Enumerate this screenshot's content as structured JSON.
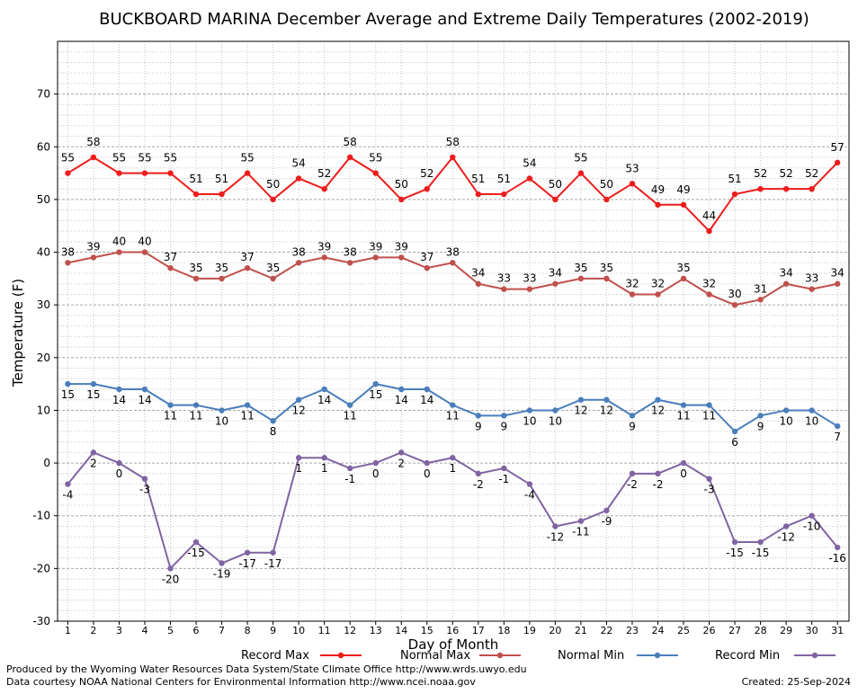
{
  "chart_data": {
    "type": "line",
    "title": "BUCKBOARD MARINA December Average and Extreme Daily Temperatures (2002-2019)",
    "xlabel": "Day of Month",
    "ylabel": "Temperature (F)",
    "x": [
      1,
      2,
      3,
      4,
      5,
      6,
      7,
      8,
      9,
      10,
      11,
      12,
      13,
      14,
      15,
      16,
      17,
      18,
      19,
      20,
      21,
      22,
      23,
      24,
      25,
      26,
      27,
      28,
      29,
      30,
      31
    ],
    "ylim": [
      -30,
      80
    ],
    "yticks": [
      -30,
      -20,
      -10,
      0,
      10,
      20,
      30,
      40,
      50,
      60,
      70
    ],
    "grid": true,
    "legend_position": "bottom",
    "series": [
      {
        "name": "Record Max",
        "color": "#ee1c1c",
        "values": [
          55,
          58,
          55,
          55,
          55,
          51,
          51,
          55,
          50,
          54,
          52,
          58,
          55,
          50,
          52,
          58,
          51,
          51,
          54,
          50,
          55,
          50,
          53,
          49,
          49,
          44,
          51,
          52,
          52,
          52,
          57
        ]
      },
      {
        "name": "Normal Max",
        "color": "#c0504d",
        "values": [
          38,
          39,
          40,
          40,
          37,
          35,
          35,
          37,
          35,
          38,
          39,
          38,
          39,
          39,
          37,
          38,
          34,
          33,
          33,
          34,
          35,
          35,
          32,
          32,
          35,
          32,
          30,
          31,
          34,
          33,
          34
        ]
      },
      {
        "name": "Normal Min",
        "color": "#4a7ebb",
        "values": [
          15,
          15,
          14,
          14,
          11,
          11,
          10,
          11,
          8,
          12,
          14,
          11,
          15,
          14,
          14,
          11,
          9,
          9,
          10,
          10,
          12,
          12,
          9,
          12,
          11,
          11,
          6,
          9,
          10,
          10,
          7
        ]
      },
      {
        "name": "Record Min",
        "color": "#8064a2",
        "values": [
          -4,
          2,
          0,
          -3,
          -20,
          -15,
          -19,
          -17,
          -17,
          1,
          1,
          -1,
          0,
          2,
          0,
          1,
          -2,
          -1,
          -4,
          -12,
          -11,
          -9,
          -2,
          -2,
          0,
          -3,
          -15,
          -15,
          -12,
          -10,
          -16
        ]
      }
    ]
  },
  "footer": {
    "produced_by": "Produced by the Wyoming Water Resources Data System/State Climate Office http://www.wrds.uwyo.edu",
    "courtesy": "Data courtesy NOAA National Centers for Environmental Information http://www.ncei.noaa.gov",
    "created": "Created:  25-Sep-2024"
  }
}
